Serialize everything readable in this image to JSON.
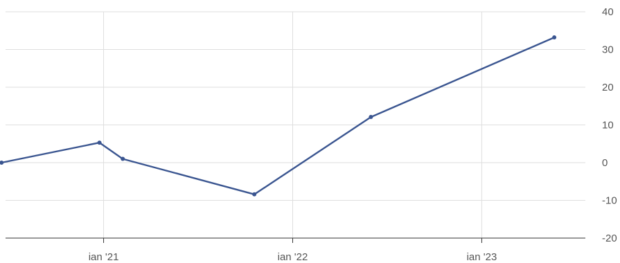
{
  "chart_data": {
    "type": "line",
    "x_type": "date",
    "title": "",
    "xlabel": "",
    "ylabel": "",
    "grid": true,
    "legend": "none",
    "y_axis_side": "right",
    "ylim": [
      -20,
      40
    ],
    "yticks": [
      -20,
      -10,
      0,
      10,
      20,
      30,
      40
    ],
    "xlim": [
      "2020-06-15",
      "2023-07-20"
    ],
    "xticks": [
      {
        "date": "2021-01-01",
        "label": "ian '21"
      },
      {
        "date": "2022-01-01",
        "label": "ian '22"
      },
      {
        "date": "2023-01-01",
        "label": "ian '23"
      }
    ],
    "series": [
      {
        "color": "#3a5590",
        "points": [
          {
            "x": "2020-06-18",
            "y": 0
          },
          {
            "x": "2020-12-24",
            "y": 5.3
          },
          {
            "x": "2021-02-07",
            "y": 1.0
          },
          {
            "x": "2021-10-19",
            "y": -8.4
          },
          {
            "x": "2022-06-01",
            "y": 12.1
          },
          {
            "x": "2023-05-21",
            "y": 33.2
          }
        ]
      }
    ]
  }
}
